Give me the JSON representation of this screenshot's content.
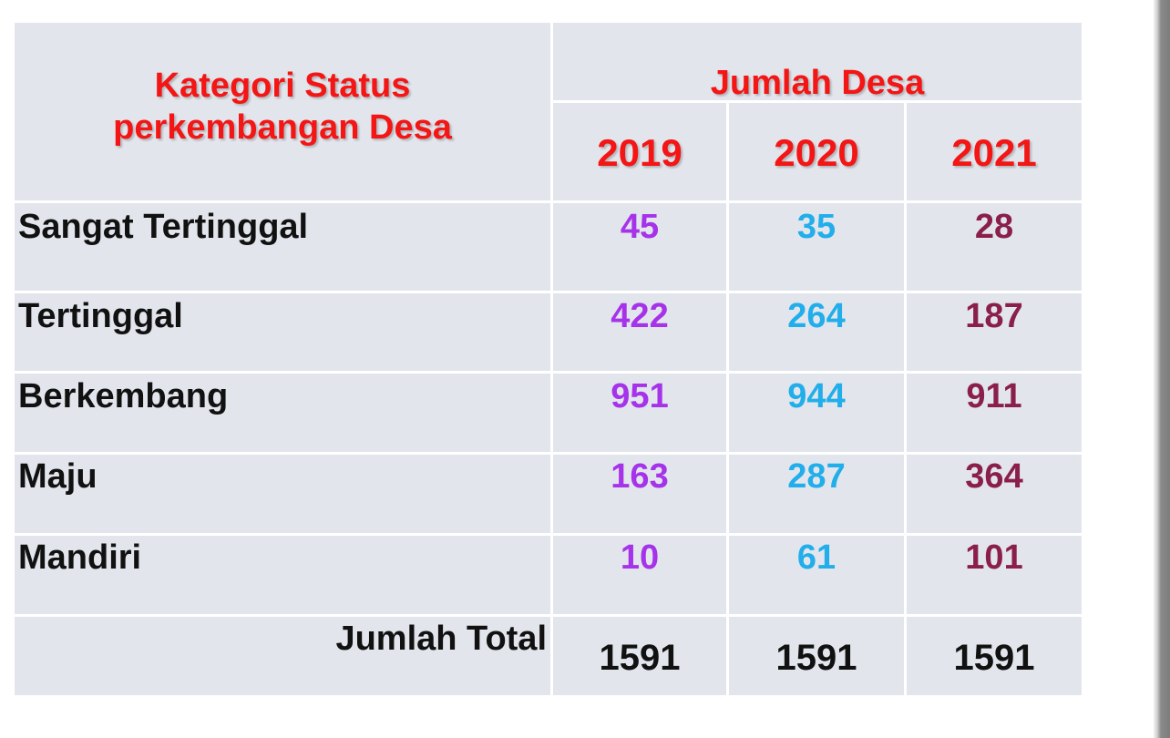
{
  "table": {
    "category_header_line1": "Kategori Status",
    "category_header_line2": "perkembangan Desa",
    "group_header": "Jumlah Desa",
    "years": [
      "2019",
      "2020",
      "2021"
    ],
    "rows": [
      {
        "label": "Sangat Tertinggal",
        "values": [
          "45",
          "35",
          "28"
        ]
      },
      {
        "label": "Tertinggal",
        "values": [
          "422",
          "264",
          "187"
        ]
      },
      {
        "label": "Berkembang",
        "values": [
          "951",
          "944",
          "911"
        ]
      },
      {
        "label": "Maju",
        "values": [
          "163",
          "287",
          "364"
        ]
      },
      {
        "label": "Mandiri",
        "values": [
          "10",
          "61",
          "101"
        ]
      }
    ],
    "total": {
      "label": "Jumlah Total",
      "values": [
        "1591",
        "1591",
        "1591"
      ]
    }
  },
  "colors": {
    "header_text": "#f41515",
    "col_2019": "#a633ea",
    "col_2020": "#22aeea",
    "col_2021": "#8a1f4b",
    "cell_background": "#e2e6ec"
  }
}
